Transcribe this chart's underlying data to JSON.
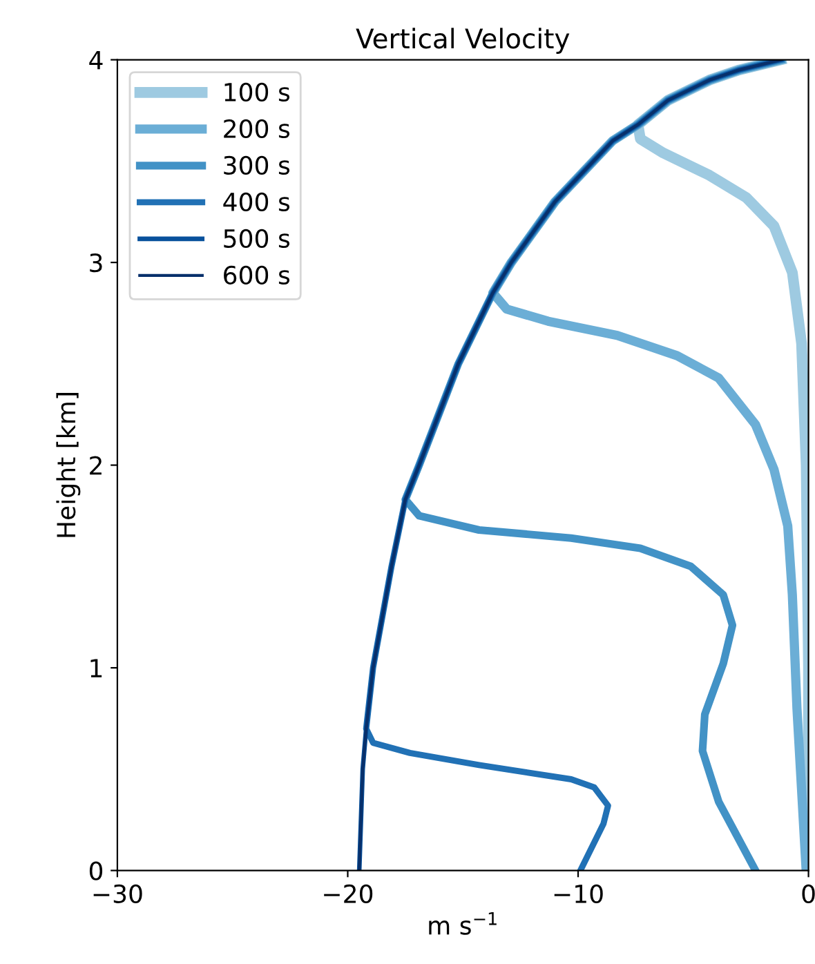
{
  "chart_data": {
    "type": "line",
    "title": "Vertical Velocity",
    "xlabel": "m s$^{−1}$",
    "ylabel": "Height [km]",
    "xlim": [
      -30,
      0
    ],
    "ylim": [
      0,
      4
    ],
    "xticks": [
      -30,
      -20,
      -10,
      0
    ],
    "yticks": [
      0,
      1,
      2,
      3,
      4
    ],
    "grid": false,
    "legend": "top left",
    "marker": "none",
    "series": [
      {
        "name": "100 s",
        "color": "#9ecae1",
        "x": [
          0,
          0,
          -0.1,
          -0.3,
          -0.7,
          -1.5,
          -2.7,
          -4.3,
          -6.3,
          -7.3,
          -7.4,
          -6.1,
          -4.3,
          -3.0,
          -1.2
        ],
        "values": [
          0,
          1.0,
          2.0,
          2.6,
          2.95,
          3.18,
          3.32,
          3.43,
          3.54,
          3.61,
          3.68,
          3.8,
          3.9,
          3.95,
          4.0
        ]
      },
      {
        "name": "200 s",
        "color": "#6baed6",
        "x": [
          -0.1,
          -0.5,
          -0.7,
          -0.9,
          -1.5,
          -2.3,
          -3.9,
          -5.7,
          -8.3,
          -11.3,
          -13.1,
          -13.7,
          -12.9,
          -11.0,
          -8.5,
          -7.4,
          -6.1,
          -4.3,
          -3.0,
          -1.2
        ],
        "values": [
          0,
          0.8,
          1.36,
          1.7,
          1.98,
          2.2,
          2.43,
          2.54,
          2.64,
          2.71,
          2.77,
          2.85,
          3.0,
          3.3,
          3.6,
          3.68,
          3.8,
          3.9,
          3.95,
          4.0
        ]
      },
      {
        "name": "300 s",
        "color": "#4292c6",
        "x": [
          -2.3,
          -3.9,
          -4.6,
          -4.5,
          -3.7,
          -3.3,
          -3.7,
          -5.1,
          -7.3,
          -10.3,
          -14.3,
          -16.9,
          -17.5,
          -16.9,
          -15.2,
          -13.7,
          -12.9,
          -11.0,
          -8.5,
          -7.4,
          -6.1,
          -4.3,
          -3.0,
          -1.2
        ],
        "values": [
          0,
          0.34,
          0.59,
          0.77,
          1.02,
          1.21,
          1.36,
          1.5,
          1.59,
          1.64,
          1.68,
          1.75,
          1.83,
          2.0,
          2.5,
          2.85,
          3.0,
          3.3,
          3.6,
          3.68,
          3.8,
          3.9,
          3.95,
          4.0
        ]
      },
      {
        "name": "400 s",
        "color": "#2171b5",
        "x": [
          -9.9,
          -8.9,
          -8.7,
          -9.3,
          -10.3,
          -14.3,
          -17.3,
          -18.9,
          -19.2,
          -18.9,
          -18.1,
          -17.5,
          -16.9,
          -15.2,
          -13.7,
          -12.9,
          -11.0,
          -8.5,
          -7.4,
          -6.1,
          -4.3,
          -3.0,
          -1.2
        ],
        "values": [
          0,
          0.23,
          0.32,
          0.41,
          0.45,
          0.52,
          0.58,
          0.63,
          0.7,
          1.0,
          1.5,
          1.83,
          2.0,
          2.5,
          2.85,
          3.0,
          3.3,
          3.6,
          3.68,
          3.8,
          3.9,
          3.95,
          4.0
        ]
      },
      {
        "name": "500 s",
        "color": "#08519c",
        "x": [
          -19.5,
          -19.35,
          -19.2,
          -18.9,
          -18.1,
          -17.5,
          -16.9,
          -15.2,
          -13.7,
          -12.9,
          -11.0,
          -8.5,
          -7.4,
          -6.1,
          -4.3,
          -3.0,
          -1.2
        ],
        "values": [
          0,
          0.5,
          0.7,
          1.0,
          1.5,
          1.83,
          2.0,
          2.5,
          2.85,
          3.0,
          3.3,
          3.6,
          3.68,
          3.8,
          3.9,
          3.95,
          4.0
        ]
      },
      {
        "name": "600 s",
        "color": "#08306b",
        "x": [
          -19.5,
          -19.35,
          -19.2,
          -18.9,
          -18.1,
          -17.5,
          -16.9,
          -15.2,
          -13.7,
          -12.9,
          -11.0,
          -8.5,
          -7.4,
          -6.1,
          -4.3,
          -3.0,
          -1.2
        ],
        "values": [
          0,
          0.5,
          0.7,
          1.0,
          1.5,
          1.83,
          2.0,
          2.5,
          2.85,
          3.0,
          3.3,
          3.6,
          3.68,
          3.8,
          3.9,
          3.95,
          4.0
        ]
      }
    ]
  }
}
